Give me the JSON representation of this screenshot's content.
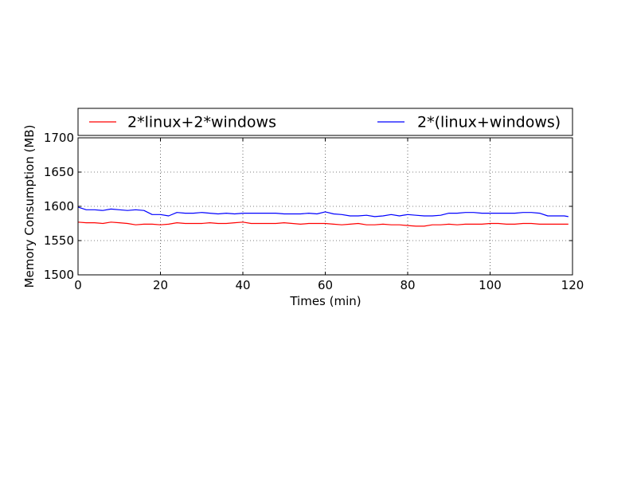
{
  "chart_data": {
    "type": "line",
    "xlabel": "Times (min)",
    "ylabel": "Memory Consumption (MB)",
    "xlim": [
      0,
      120
    ],
    "ylim": [
      1500,
      1700
    ],
    "xticks": [
      "0",
      "20",
      "40",
      "60",
      "80",
      "100",
      "120"
    ],
    "yticks": [
      "1500",
      "1550",
      "1600",
      "1650",
      "1700"
    ],
    "grid": true,
    "legend_position": "top",
    "series": [
      {
        "name": "2*linux+2*windows",
        "color": "#ff0000",
        "x": [
          0,
          2,
          4,
          6,
          8,
          10,
          12,
          14,
          16,
          18,
          20,
          22,
          24,
          26,
          28,
          30,
          32,
          34,
          36,
          38,
          40,
          42,
          44,
          46,
          48,
          50,
          52,
          54,
          56,
          58,
          60,
          62,
          64,
          66,
          68,
          70,
          72,
          74,
          76,
          78,
          80,
          82,
          84,
          86,
          88,
          90,
          92,
          94,
          96,
          98,
          100,
          102,
          104,
          106,
          108,
          110,
          112,
          114,
          116,
          118,
          119
        ],
        "y": [
          1577,
          1576,
          1576,
          1575,
          1577,
          1576,
          1575,
          1573,
          1574,
          1574,
          1573,
          1574,
          1576,
          1575,
          1575,
          1575,
          1576,
          1575,
          1575,
          1576,
          1577,
          1575,
          1575,
          1575,
          1575,
          1576,
          1575,
          1574,
          1575,
          1575,
          1575,
          1574,
          1573,
          1574,
          1575,
          1573,
          1573,
          1574,
          1573,
          1573,
          1572,
          1571,
          1571,
          1573,
          1573,
          1574,
          1573,
          1574,
          1574,
          1574,
          1575,
          1575,
          1574,
          1574,
          1575,
          1575,
          1574,
          1574,
          1574,
          1574,
          1574
        ]
      },
      {
        "name": "2*(linux+windows)",
        "color": "#0000ff",
        "x": [
          0,
          2,
          4,
          6,
          8,
          10,
          12,
          14,
          16,
          18,
          20,
          22,
          24,
          26,
          28,
          30,
          32,
          34,
          36,
          38,
          40,
          42,
          44,
          46,
          48,
          50,
          52,
          54,
          56,
          58,
          60,
          62,
          64,
          66,
          68,
          70,
          72,
          74,
          76,
          78,
          80,
          82,
          84,
          86,
          88,
          90,
          92,
          94,
          96,
          98,
          100,
          102,
          104,
          106,
          108,
          110,
          112,
          114,
          116,
          118,
          119
        ],
        "y": [
          1599,
          1595,
          1595,
          1594,
          1596,
          1595,
          1594,
          1595,
          1594,
          1588,
          1588,
          1586,
          1591,
          1590,
          1590,
          1591,
          1590,
          1589,
          1590,
          1589,
          1590,
          1590,
          1590,
          1590,
          1590,
          1589,
          1589,
          1589,
          1590,
          1589,
          1592,
          1589,
          1588,
          1586,
          1586,
          1587,
          1585,
          1586,
          1588,
          1586,
          1588,
          1587,
          1586,
          1586,
          1587,
          1590,
          1590,
          1591,
          1591,
          1590,
          1590,
          1590,
          1590,
          1590,
          1591,
          1591,
          1590,
          1586,
          1586,
          1586,
          1585
        ]
      }
    ]
  }
}
